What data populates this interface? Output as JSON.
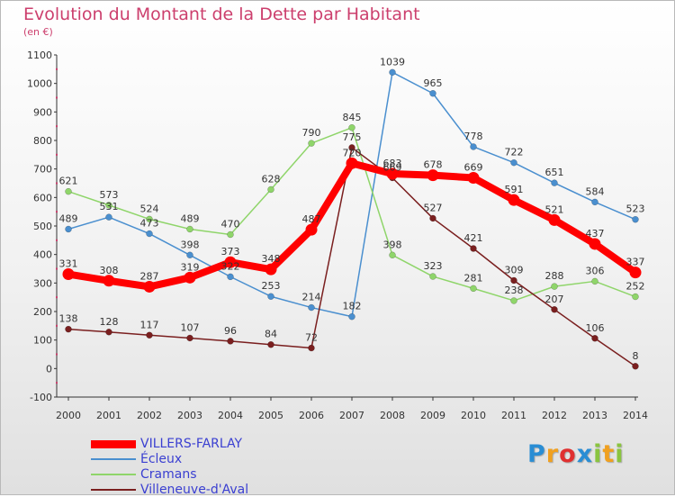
{
  "chart_data": {
    "type": "line",
    "title": "Evolution du Montant de la Dette par Habitant",
    "subtitle": "(en €)",
    "x": [
      "2000",
      "2001",
      "2002",
      "2003",
      "2004",
      "2005",
      "2006",
      "2007",
      "2008",
      "2009",
      "2010",
      "2011",
      "2012",
      "2013",
      "2014"
    ],
    "yticks": [
      "1100",
      "1000",
      "900",
      "800",
      "700",
      "600",
      "500",
      "400",
      "300",
      "200",
      "100",
      "0",
      "-100"
    ],
    "ylim": [
      -100,
      1100
    ],
    "grid": false,
    "legend_position": "bottom-left",
    "series": [
      {
        "name": "VILLERS-FARLAY",
        "color": "#ff0000",
        "values": [
          331,
          308,
          287,
          319,
          373,
          348,
          487,
          720,
          683,
          678,
          669,
          591,
          521,
          437,
          337
        ],
        "labels": [
          "331",
          "308",
          "287",
          "319",
          "373",
          "348",
          "487",
          "720",
          "683",
          "678",
          "669",
          "591",
          "521",
          "437",
          "337"
        ]
      },
      {
        "name": "Écleux",
        "color": "#4a8fcf",
        "values": [
          489,
          531,
          473,
          398,
          322,
          253,
          214,
          182,
          1039,
          965,
          778,
          722,
          651,
          584,
          523
        ],
        "labels": [
          "489",
          "531",
          "473",
          "398",
          "322",
          "253",
          "214",
          "182",
          "1039",
          "965",
          "778",
          "722",
          "651",
          "584",
          "523"
        ]
      },
      {
        "name": "Cramans",
        "color": "#8fd56a",
        "values": [
          621,
          573,
          524,
          489,
          470,
          628,
          790,
          845,
          398,
          323,
          281,
          238,
          288,
          306,
          252
        ],
        "labels": [
          "621",
          "573",
          "524",
          "489",
          "470",
          "628",
          "790",
          "845",
          "398",
          "323",
          "281",
          "238",
          "288",
          "306",
          "252"
        ]
      },
      {
        "name": "Villeneuve-d'Aval",
        "color": "#7a1f1f",
        "values": [
          138,
          128,
          117,
          107,
          96,
          84,
          72,
          775,
          669,
          527,
          421,
          309,
          207,
          106,
          8
        ],
        "labels": [
          "138",
          "128",
          "117",
          "107",
          "96",
          "84",
          "72",
          "775",
          "669",
          "527",
          "421",
          "309",
          "207",
          "106",
          "8"
        ]
      }
    ]
  },
  "logo": {
    "letters": [
      "P",
      "r",
      "o",
      "x",
      "i",
      "t",
      "i"
    ],
    "colors": [
      "#2a8dd4",
      "#f0a020",
      "#e03030",
      "#2a8dd4",
      "#8ac43f",
      "#f0a020",
      "#8ac43f"
    ]
  }
}
